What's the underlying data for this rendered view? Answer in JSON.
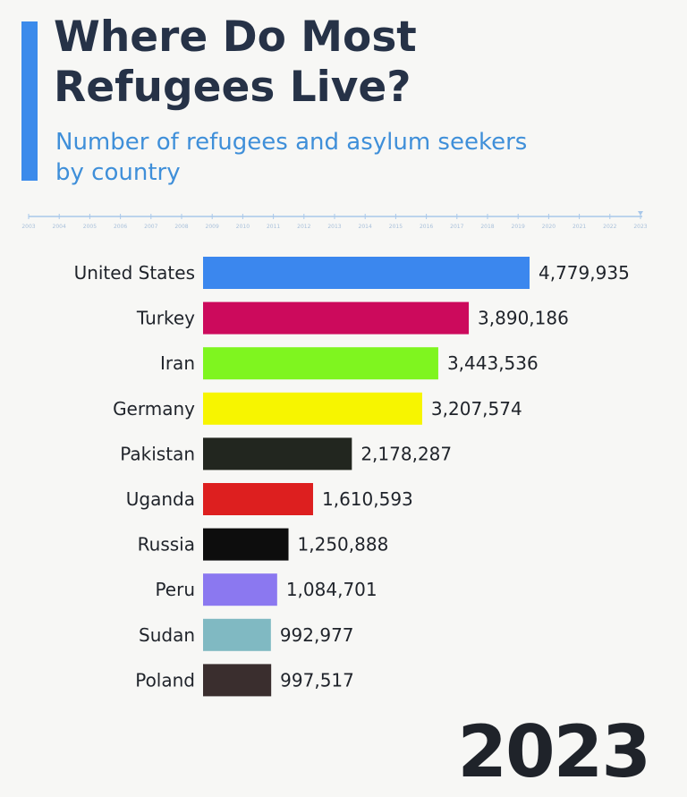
{
  "title_lines": [
    "Where Do Most",
    "Refugees Live?"
  ],
  "subtitle_lines": [
    "Number of refugees and asylum seekers",
    "by country"
  ],
  "year_label": "2023",
  "timeline": {
    "years": [
      "2003",
      "2004",
      "2005",
      "2006",
      "2007",
      "2008",
      "2009",
      "2010",
      "2011",
      "2012",
      "2013",
      "2014",
      "2015",
      "2016",
      "2017",
      "2018",
      "2019",
      "2020",
      "2021",
      "2022",
      "2023"
    ],
    "current": "2023",
    "line_color": "#a9c8ea",
    "label_color": "#a9c0da"
  },
  "chart_data": {
    "type": "bar",
    "orientation": "horizontal",
    "title": "Where Do Most Refugees Live?",
    "subtitle": "Number of refugees and asylum seekers by country",
    "categories": [
      "United States",
      "Turkey",
      "Iran",
      "Germany",
      "Pakistan",
      "Uganda",
      "Russia",
      "Peru",
      "Sudan",
      "Poland"
    ],
    "values": [
      4779935,
      3890186,
      3443536,
      3207574,
      2178287,
      1610593,
      1250888,
      1084701,
      992977,
      997517
    ],
    "value_labels": [
      "4,779,935",
      "3,890,186",
      "3,443,536",
      "3,207,574",
      "2,178,287",
      "1,610,593",
      "1,250,888",
      "1,084,701",
      "992,977",
      "997,517"
    ],
    "colors": [
      "#3b87ee",
      "#cc0a5c",
      "#7ff51f",
      "#f7f500",
      "#22261f",
      "#dd1f1f",
      "#0d0d0d",
      "#8b78f0",
      "#80b9c2",
      "#3a2e2e"
    ],
    "xlim": [
      0,
      4779935
    ],
    "grid": false,
    "legend": "none"
  }
}
